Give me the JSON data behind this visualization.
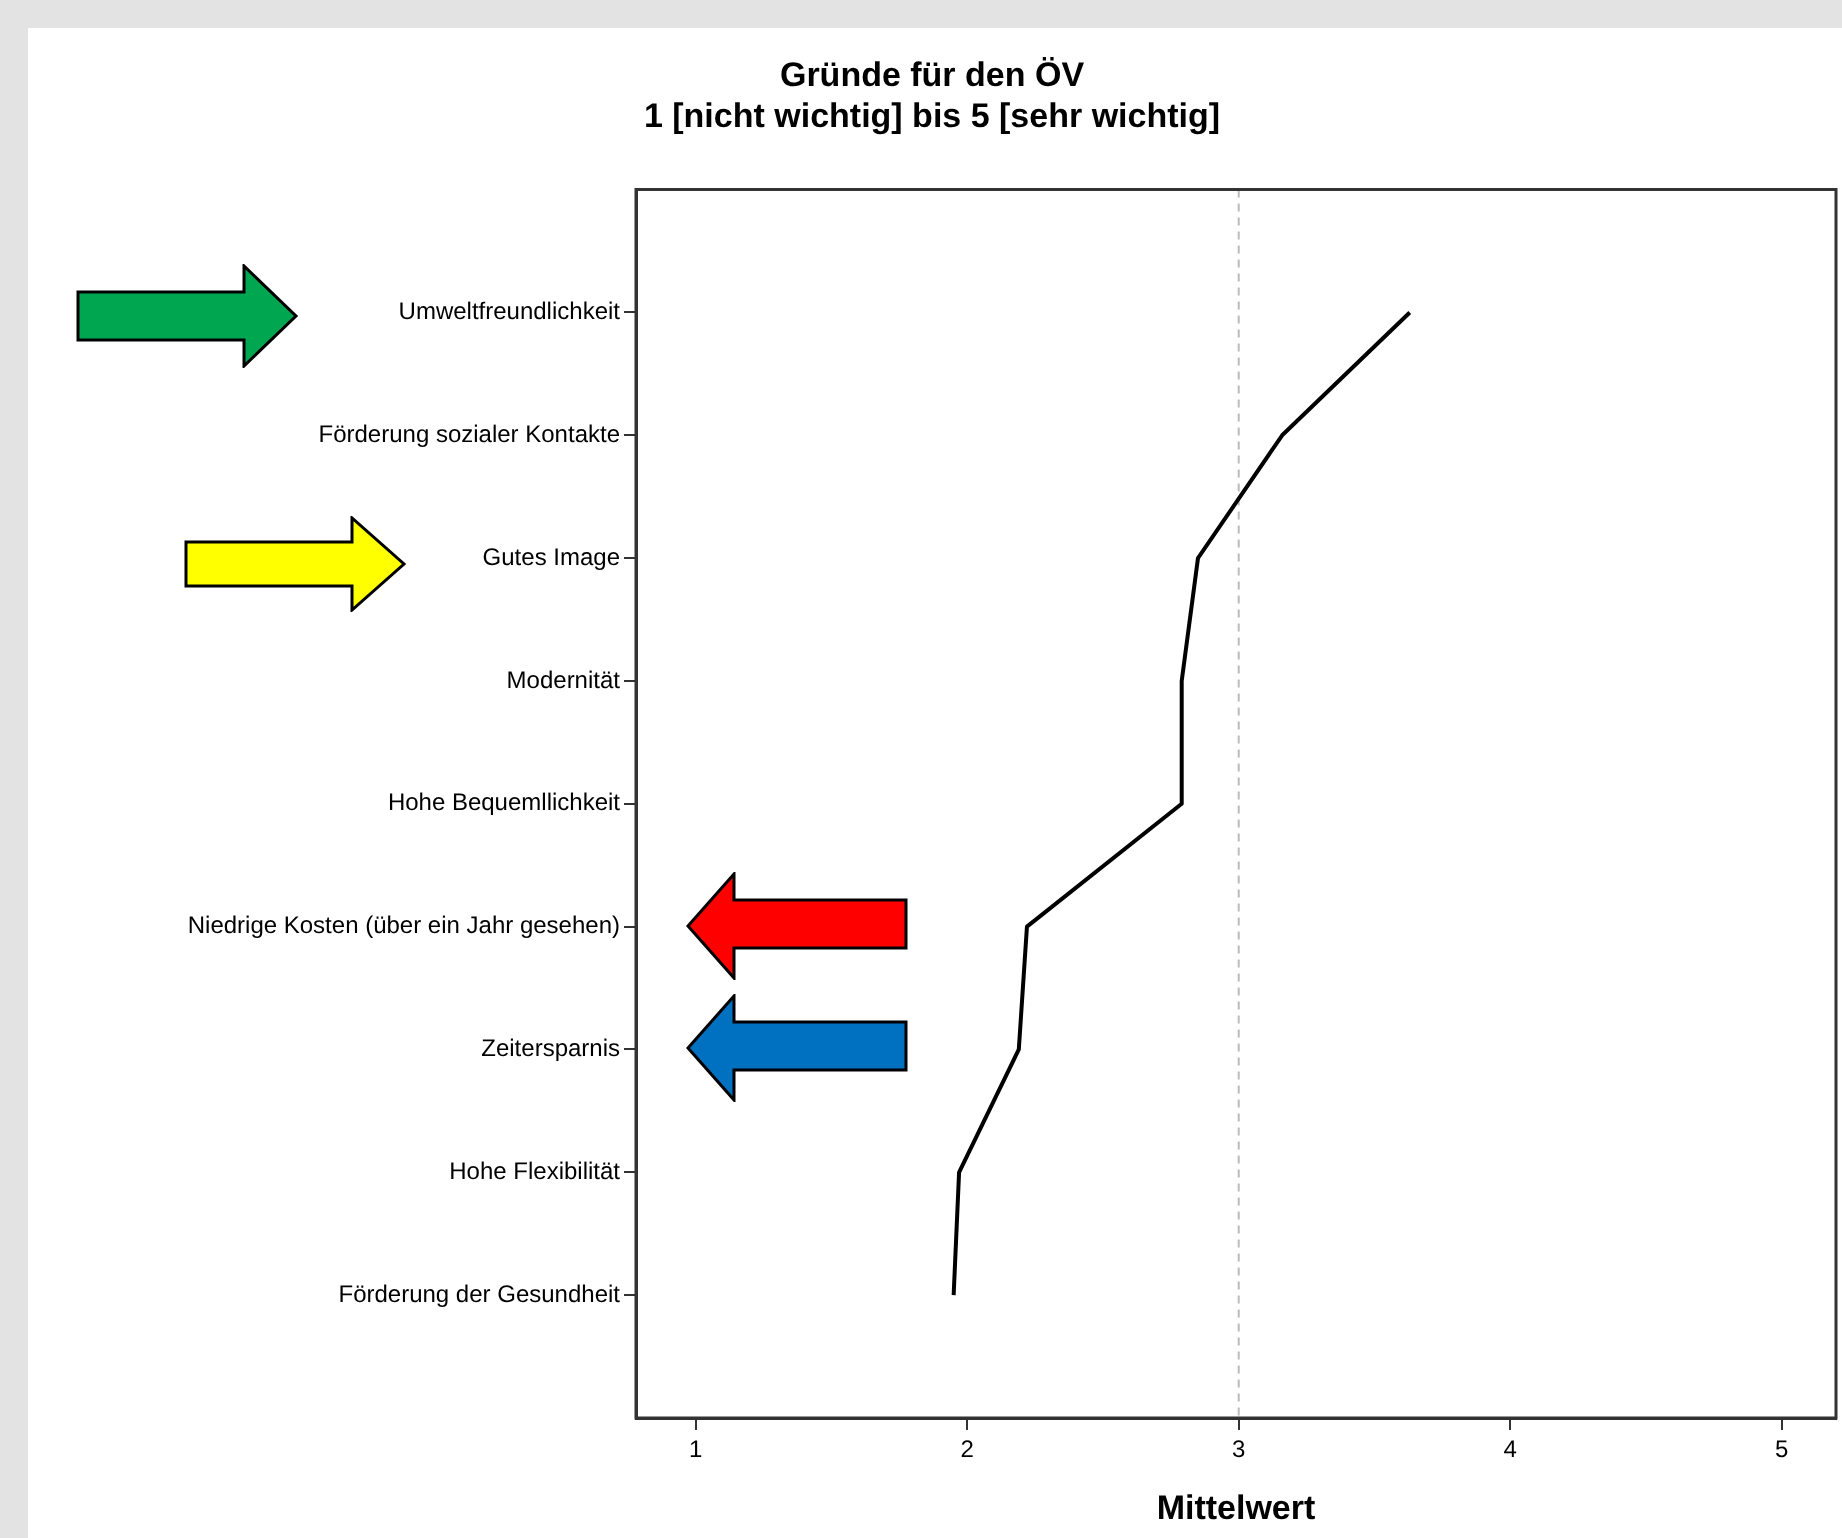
{
  "chart_data": {
    "type": "line",
    "title": "Gründe für den ÖV",
    "subtitle": "1 [nicht wichtig] bis 5 [sehr wichtig]",
    "xlabel": "Mittelwert",
    "orientation": "horizontal",
    "categories": [
      "Umweltfreundlichkeit",
      "Förderung sozialer Kontakte",
      "Gutes Image",
      "Modernität",
      "Hohe Bequemllichkeit",
      "Niedrige Kosten (über ein Jahr gesehen)",
      "Zeitersparnis",
      "Hohe Flexibilität",
      "Förderung der Gesundheit"
    ],
    "series": [
      {
        "color": "#000000",
        "values": [
          3.63,
          3.16,
          2.85,
          2.79,
          2.79,
          2.22,
          2.19,
          1.97,
          1.95
        ]
      }
    ],
    "xlim": [
      0.78,
      5.2
    ],
    "xticks": [
      1,
      2,
      3,
      4,
      5
    ],
    "ref_lines": [
      {
        "axis": "x",
        "value": 3,
        "color": "#bbbbbb",
        "line_style": "dashed"
      }
    ],
    "grid": false,
    "legend": false,
    "marker": "none",
    "line_style": "solid"
  }
}
